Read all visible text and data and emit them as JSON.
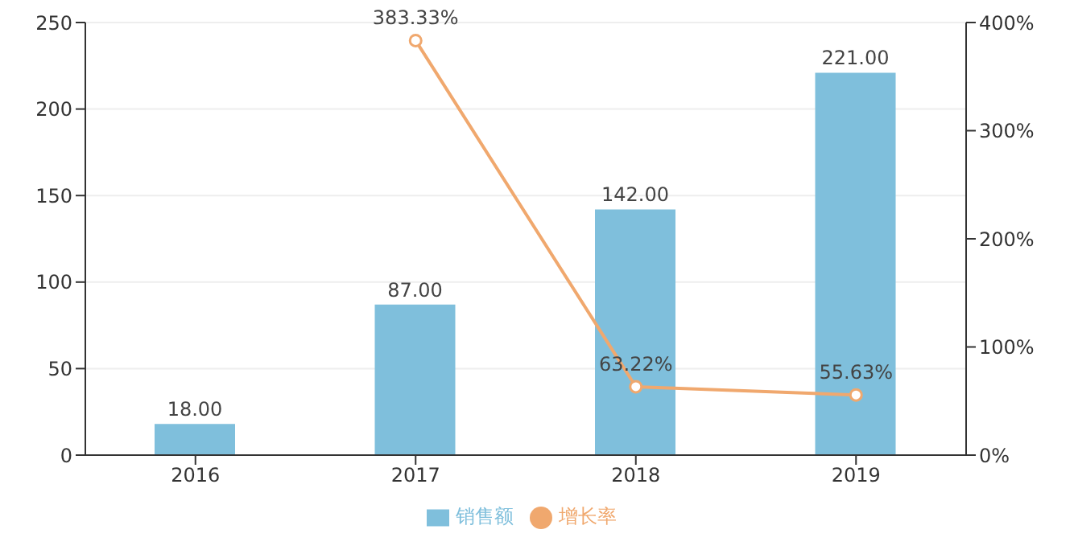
{
  "chart_data": {
    "type": "bar",
    "categories": [
      "2016",
      "2017",
      "2018",
      "2019"
    ],
    "series": [
      {
        "name": "销售额",
        "color": "#7fbfdc",
        "values": [
          18,
          87,
          142,
          221
        ],
        "value_labels": [
          "18.00",
          "87.00",
          "142.00",
          "221.00"
        ]
      },
      {
        "name": "增长率",
        "type": "line",
        "axis": "y2",
        "color": "#f0a86e",
        "values": [
          null,
          383.33,
          63.22,
          55.63
        ],
        "value_labels": [
          null,
          "383.33%",
          "63.22%",
          "55.63%"
        ]
      }
    ],
    "ylim": [
      0,
      250
    ],
    "yticks": [
      0,
      50,
      100,
      150,
      200,
      250
    ],
    "y2lim": [
      0,
      400
    ],
    "y2ticks": [
      {
        "value": 0,
        "label": "0%"
      },
      {
        "value": 100,
        "label": "100%"
      },
      {
        "value": 200,
        "label": "200%"
      },
      {
        "value": 300,
        "label": "300%"
      },
      {
        "value": 400,
        "label": "400%"
      }
    ],
    "grid": "y",
    "legend": "bottom",
    "marker": "circle",
    "line_style": "solid"
  }
}
